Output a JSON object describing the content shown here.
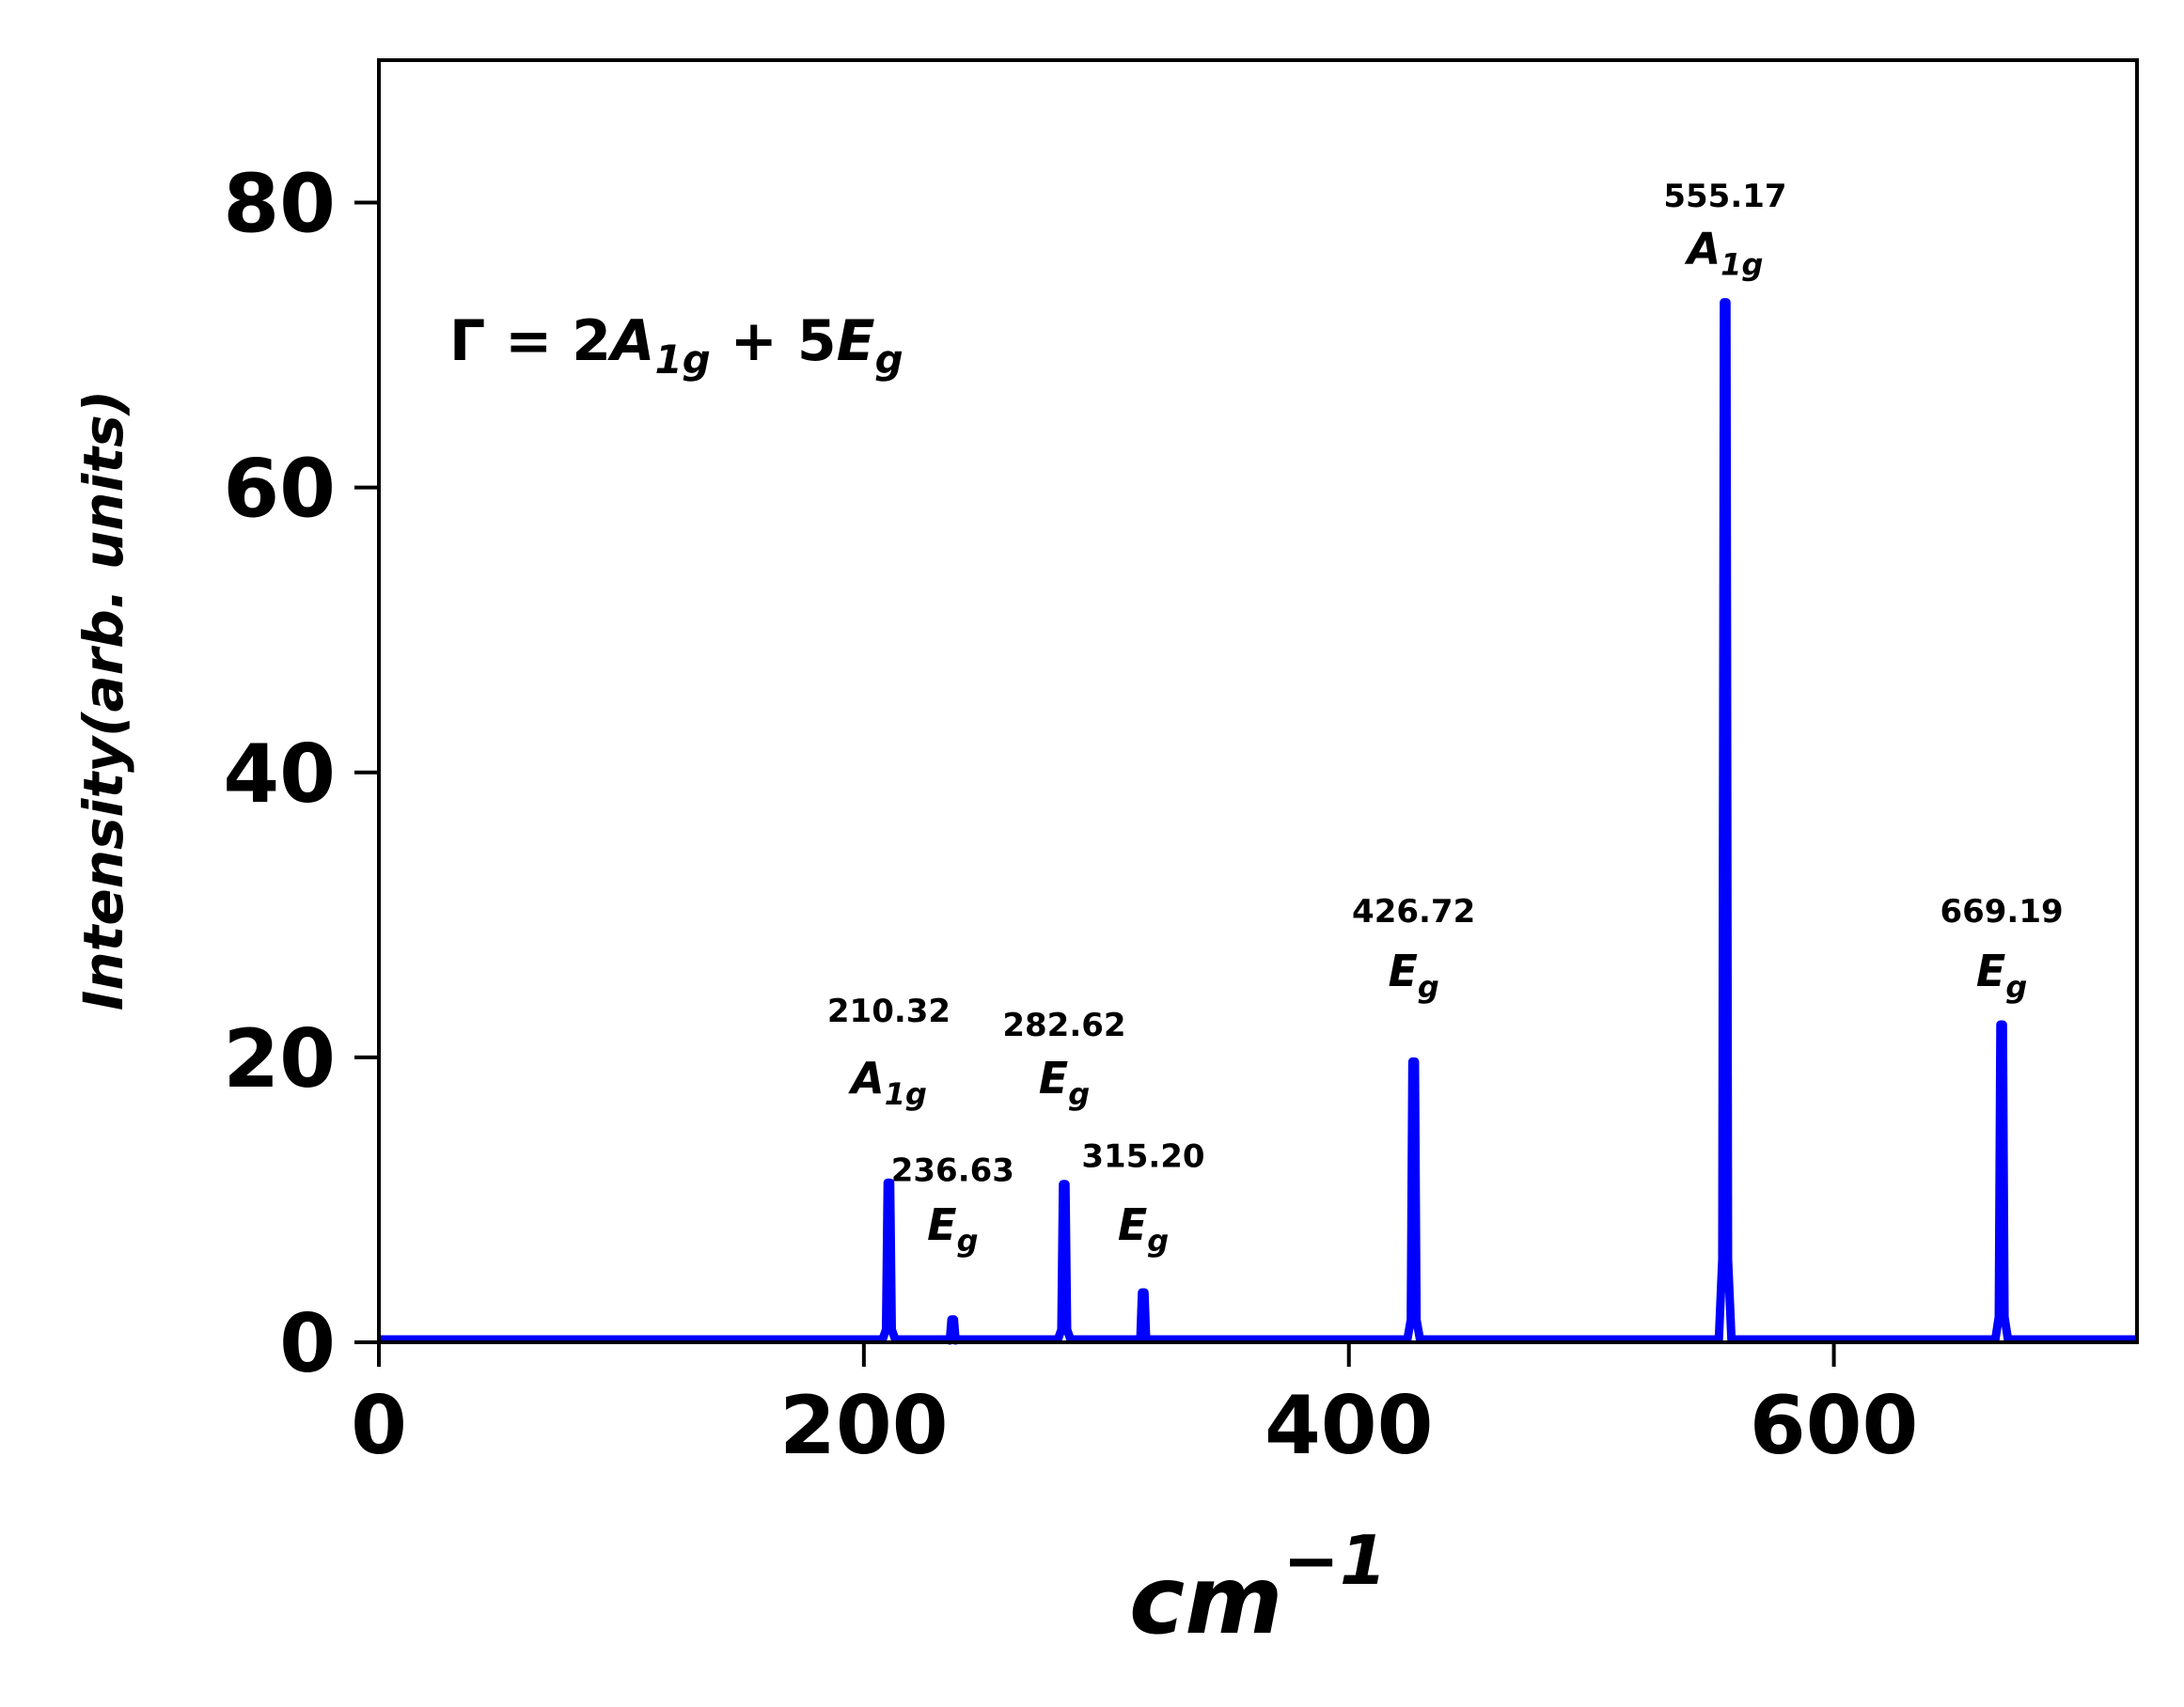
{
  "chart_data": {
    "type": "line",
    "title": "",
    "xlabel": "cm",
    "xlabel_exponent": "−1",
    "ylabel": "Intensity(arb. units)",
    "xlim": [
      0,
      725
    ],
    "ylim": [
      0,
      90
    ],
    "xticks": [
      "0",
      "200",
      "400",
      "600"
    ],
    "xtick_values": [
      0,
      200,
      400,
      600
    ],
    "yticks": [
      "0",
      "20",
      "40",
      "60",
      "80"
    ],
    "ytick_values": [
      0,
      20,
      40,
      60,
      80
    ],
    "grid": false,
    "line_color": "#0000ff",
    "baseline": 0.2,
    "annotation": {
      "prefix": "Γ = 2",
      "a": "A",
      "a_sub": "1g",
      "plus": " + 5",
      "e": "E",
      "e_sub": "g"
    },
    "peaks": [
      {
        "x": 210.32,
        "y": 11.2,
        "freq_label": "210.32",
        "mode": "A",
        "mode_sub": "1g",
        "label_freq_y": 22.5,
        "label_mode_y": 17.5
      },
      {
        "x": 236.63,
        "y": 1.6,
        "freq_label": "236.63",
        "mode": "E",
        "mode_sub": "g",
        "label_freq_y": 11.3,
        "label_mode_y": 7.2
      },
      {
        "x": 282.62,
        "y": 11.1,
        "freq_label": "282.62",
        "mode": "E",
        "mode_sub": "g",
        "label_freq_y": 21.5,
        "label_mode_y": 17.5
      },
      {
        "x": 315.2,
        "y": 3.5,
        "freq_label": "315.20",
        "mode": "E",
        "mode_sub": "g",
        "label_freq_y": 12.3,
        "label_mode_y": 7.2
      },
      {
        "x": 426.72,
        "y": 19.7,
        "freq_label": "426.72",
        "mode": "E",
        "mode_sub": "g",
        "label_freq_y": 29.5,
        "label_mode_y": 25.0
      },
      {
        "x": 555.17,
        "y": 73.0,
        "freq_label": "555.17",
        "mode": "A",
        "mode_sub": "1g",
        "label_freq_y": 79.7,
        "label_mode_y": 75.7
      },
      {
        "x": 669.19,
        "y": 22.3,
        "freq_label": "669.19",
        "mode": "E",
        "mode_sub": "g",
        "label_freq_y": 29.5,
        "label_mode_y": 25.0
      }
    ]
  }
}
